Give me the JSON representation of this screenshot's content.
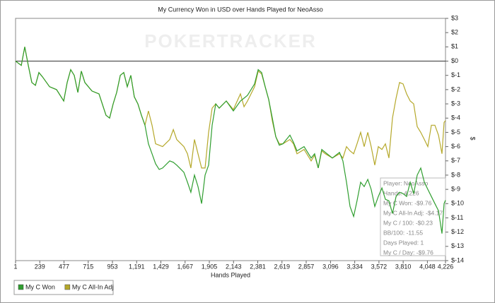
{
  "chart_data": {
    "type": "line",
    "title": "My Currency Won in USD over Hands Played for NeoAsso",
    "watermark": "POKERTRACKER",
    "x_label": "Hands Played",
    "y_label": "$",
    "x": [
      1,
      57,
      91,
      126,
      161,
      196,
      230,
      265,
      335,
      404,
      474,
      508,
      543,
      578,
      613,
      647,
      682,
      752,
      821,
      890,
      925,
      960,
      995,
      1030,
      1064,
      1099,
      1134,
      1168,
      1203,
      1238,
      1273,
      1307,
      1342,
      1377,
      1412,
      1446,
      1516,
      1551,
      1585,
      1655,
      1690,
      1724,
      1759,
      1794,
      1829,
      1863,
      1898,
      1933,
      1968,
      2002,
      2072,
      2141,
      2211,
      2246,
      2280,
      2350,
      2385,
      2419,
      2454,
      2489,
      2524,
      2558,
      2593,
      2628,
      2697,
      2732,
      2767,
      2836,
      2906,
      2940,
      2975,
      3010,
      3045,
      3114,
      3184,
      3218,
      3253,
      3288,
      3323,
      3357,
      3392,
      3427,
      3462,
      3496,
      3531,
      3566,
      3601,
      3635,
      3670,
      3705,
      3740,
      3774,
      3809,
      3844,
      3879,
      3913,
      3948,
      3983,
      4018,
      4052,
      4087,
      4122,
      4157,
      4191,
      4212,
      4226
    ],
    "series": [
      {
        "name": "My C All-In Adj",
        "color": "#b5a82a",
        "values": [
          0,
          -0.3,
          1,
          -0.3,
          -1.5,
          -1.7,
          -0.8,
          -1.1,
          -1.8,
          -2.0,
          -2.8,
          -1.5,
          -0.6,
          -1.0,
          -2.2,
          -0.7,
          -1.5,
          -2.1,
          -2.3,
          -3.8,
          -4.0,
          -3.0,
          -2.2,
          -1.0,
          -0.8,
          -1.8,
          -1.0,
          -2.5,
          -3.0,
          -3.8,
          -4.5,
          -3.5,
          -4.5,
          -5.8,
          -5.9,
          -6.0,
          -5.5,
          -4.8,
          -5.5,
          -6.0,
          -6.5,
          -7.5,
          -5.5,
          -6.5,
          -7.5,
          -7.5,
          -5.0,
          -3.3,
          -3.0,
          -3.3,
          -2.8,
          -3.4,
          -2.3,
          -3.2,
          -2.8,
          -1.8,
          -0.7,
          -0.9,
          -1.8,
          -2.7,
          -4.2,
          -5.3,
          -5.8,
          -5.8,
          -5.5,
          -5.8,
          -6.5,
          -6.2,
          -7.0,
          -6.6,
          -7.5,
          -6.3,
          -6.5,
          -6.8,
          -6.5,
          -6.8,
          -6.0,
          -6.3,
          -6.5,
          -5.8,
          -5.0,
          -6.0,
          -5.0,
          -6.0,
          -7.3,
          -6.0,
          -6.2,
          -5.8,
          -6.8,
          -4.0,
          -2.6,
          -1.5,
          -1.6,
          -2.3,
          -2.8,
          -3.0,
          -4.6,
          -5.0,
          -5.5,
          -6.0,
          -4.5,
          -4.5,
          -5.2,
          -6.5,
          -4.3,
          -4.17
        ]
      },
      {
        "name": "My C Won",
        "color": "#2f9e2f",
        "values": [
          0,
          -0.3,
          1,
          -0.3,
          -1.5,
          -1.7,
          -0.8,
          -1.1,
          -1.8,
          -2.0,
          -2.8,
          -1.5,
          -0.6,
          -1.0,
          -2.2,
          -0.7,
          -1.5,
          -2.1,
          -2.3,
          -3.8,
          -4.0,
          -3.0,
          -2.2,
          -1.0,
          -0.8,
          -1.8,
          -1.0,
          -2.5,
          -3.0,
          -3.8,
          -4.5,
          -5.8,
          -6.5,
          -7.2,
          -7.6,
          -7.5,
          -7.0,
          -7.1,
          -7.3,
          -7.8,
          -8.5,
          -9.2,
          -8.0,
          -8.8,
          -10.0,
          -8.0,
          -7.3,
          -4.5,
          -3.0,
          -3.3,
          -2.8,
          -3.5,
          -2.8,
          -2.6,
          -2.4,
          -1.6,
          -0.6,
          -0.8,
          -1.8,
          -2.7,
          -4.0,
          -5.3,
          -5.9,
          -5.8,
          -5.2,
          -5.7,
          -6.3,
          -6.0,
          -6.8,
          -6.5,
          -7.5,
          -6.2,
          -6.4,
          -6.8,
          -6.4,
          -7.0,
          -8.5,
          -10.2,
          -10.9,
          -9.8,
          -8.5,
          -8.8,
          -8.3,
          -9.0,
          -10.2,
          -9.5,
          -8.9,
          -9.7,
          -9.8,
          -10.7,
          -9.5,
          -9.2,
          -9.3,
          -9.5,
          -8.5,
          -9.3,
          -8.0,
          -7.5,
          -8.5,
          -9.0,
          -9.5,
          -10.0,
          -10.5,
          -12.1,
          -10.0,
          -9.76
        ]
      }
    ],
    "legend_order": [
      1,
      0
    ],
    "xlim": [
      1,
      4226
    ],
    "xticks": [
      1,
      239,
      477,
      715,
      953,
      {
        "value": 1191,
        "label": "1,191"
      },
      {
        "value": 1429,
        "label": "1,429"
      },
      {
        "value": 1667,
        "label": "1,667"
      },
      {
        "value": 1905,
        "label": "1,905"
      },
      {
        "value": 2143,
        "label": "2,143"
      },
      {
        "value": 2381,
        "label": "2,381"
      },
      {
        "value": 2619,
        "label": "2,619"
      },
      {
        "value": 2857,
        "label": "2,857"
      },
      {
        "value": 3096,
        "label": "3,096"
      },
      {
        "value": 3334,
        "label": "3,334"
      },
      {
        "value": 3572,
        "label": "3,572"
      },
      {
        "value": 3810,
        "label": "3,810"
      },
      {
        "value": 4048,
        "label": "4,048"
      },
      {
        "value": 4226,
        "label": "4,226"
      }
    ],
    "ylim": [
      -14,
      3
    ],
    "yticks": [
      {
        "value": 3,
        "label": "$3"
      },
      {
        "value": 2,
        "label": "$2"
      },
      {
        "value": 1,
        "label": "$1"
      },
      {
        "value": 0,
        "label": "$0"
      },
      {
        "value": -1,
        "label": "$-1"
      },
      {
        "value": -2,
        "label": "$-2"
      },
      {
        "value": -3,
        "label": "$-3"
      },
      {
        "value": -4,
        "label": "$-4"
      },
      {
        "value": -5,
        "label": "$-5"
      },
      {
        "value": -6,
        "label": "$-6"
      },
      {
        "value": -7,
        "label": "$-7"
      },
      {
        "value": -8,
        "label": "$-8"
      },
      {
        "value": -9,
        "label": "$-9"
      },
      {
        "value": -10,
        "label": "$-10"
      },
      {
        "value": -11,
        "label": "$-11"
      },
      {
        "value": -12,
        "label": "$-12"
      },
      {
        "value": -13,
        "label": "$-13"
      },
      {
        "value": -14,
        "label": "$-14"
      }
    ],
    "grid": false,
    "annotations": [
      "Player: NeoAsso",
      "Hands: 4,226",
      "My C Won: -$9.76",
      "My C All-In Adj: -$4.17",
      "My C / 100: -$0.23",
      "BB/100: -11.55",
      "Days Played: 1",
      "My C / Day: -$9.76"
    ]
  }
}
